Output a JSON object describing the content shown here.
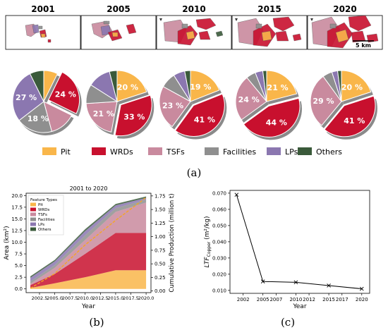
{
  "colors": {
    "pit": "#f9b64a",
    "wrds": "#c8102e",
    "tsfs": "#c98a9e",
    "facilities": "#8f8f8f",
    "lps": "#8b77b0",
    "others": "#3a5a3a",
    "line_orange": "#f5a623",
    "map_bg": "#ffffff"
  },
  "panel_a": {
    "label": "(a)",
    "years": [
      "2001",
      "2005",
      "2010",
      "2015",
      "2020"
    ],
    "scale_label": "5 km",
    "legend": [
      {
        "key": "pit",
        "label": "Pit"
      },
      {
        "key": "wrds",
        "label": "WRDs"
      },
      {
        "key": "tsfs",
        "label": "TSFs"
      },
      {
        "key": "facilities",
        "label": "Facilities"
      },
      {
        "key": "lps",
        "label": "LPs"
      },
      {
        "key": "others",
        "label": "Others"
      }
    ]
  },
  "panel_b": {
    "label": "(b)"
  },
  "panel_c": {
    "label": "(c)"
  },
  "chart_data": [
    {
      "type": "pie",
      "title": "2001",
      "categories": [
        "Pit",
        "WRDs",
        "TSFs",
        "Facilities",
        "LPs",
        "Others"
      ],
      "values": [
        7,
        24,
        13,
        18,
        27,
        7
      ],
      "value_labels": [
        "",
        "24 %",
        "",
        "18 %",
        "27 %",
        ""
      ]
    },
    {
      "type": "pie",
      "title": "2005",
      "categories": [
        "Pit",
        "WRDs",
        "TSFs",
        "Facilities",
        "LPs",
        "Others"
      ],
      "values": [
        20,
        33,
        21,
        10,
        12,
        4
      ],
      "value_labels": [
        "20 %",
        "33 %",
        "21 %",
        "",
        "",
        ""
      ]
    },
    {
      "type": "pie",
      "title": "2010",
      "categories": [
        "Pit",
        "WRDs",
        "TSFs",
        "Facilities",
        "LPs",
        "Others"
      ],
      "values": [
        19,
        41,
        23,
        8,
        6,
        3
      ],
      "value_labels": [
        "19 %",
        "41 %",
        "23 %",
        "",
        "",
        ""
      ]
    },
    {
      "type": "pie",
      "title": "2015",
      "categories": [
        "Pit",
        "WRDs",
        "TSFs",
        "Facilities",
        "LPs",
        "Others"
      ],
      "values": [
        21,
        44,
        24,
        5,
        4,
        2
      ],
      "value_labels": [
        "21 %",
        "44 %",
        "24 %",
        "",
        "",
        ""
      ]
    },
    {
      "type": "pie",
      "title": "2020",
      "categories": [
        "Pit",
        "WRDs",
        "TSFs",
        "Facilities",
        "LPs",
        "Others"
      ],
      "values": [
        20,
        41,
        29,
        5,
        3,
        2
      ],
      "value_labels": [
        "20 %",
        "41 %",
        "29 %",
        "",
        "",
        ""
      ]
    },
    {
      "type": "area",
      "title": "2001 to 2020",
      "xlabel": "Year",
      "ylabel": "Area (km²)",
      "y2label": "Cumulative Production (million t)",
      "legend_title": "Feature Types",
      "x": [
        2001,
        2005,
        2010,
        2015,
        2020
      ],
      "xticks": [
        2002.5,
        2005.0,
        2007.5,
        2010.0,
        2012.5,
        2015.0,
        2017.5,
        2020.0
      ],
      "xtick_labels": [
        "2002.5",
        "2005.0",
        "2007.5",
        "2010.0",
        "2012.5",
        "2015.0",
        "2017.5",
        "2020.0"
      ],
      "yticks": [
        "0.0",
        "2.5",
        "5.0",
        "7.5",
        "10.0",
        "12.5",
        "15.0",
        "17.5",
        "20.0"
      ],
      "y2ticks": [
        "0.00",
        "0.25",
        "0.50",
        "0.75",
        "1.00",
        "1.25",
        "1.50",
        "1.75"
      ],
      "ylim": [
        -0.8,
        20.5
      ],
      "y2lim": [
        -0.03,
        1.8
      ],
      "series": [
        {
          "key": "pit",
          "name": "Pit",
          "values": [
            0.2,
            1.2,
            2.5,
            4.0,
            4.0
          ]
        },
        {
          "key": "wrds",
          "name": "WRDs",
          "values": [
            0.6,
            2.0,
            5.0,
            8.0,
            8.0
          ]
        },
        {
          "key": "tsfs",
          "name": "TSFs",
          "values": [
            0.3,
            1.3,
            3.0,
            4.5,
            6.5
          ]
        },
        {
          "key": "facilities",
          "name": "Facilities",
          "values": [
            0.5,
            0.6,
            1.0,
            0.8,
            0.6
          ]
        },
        {
          "key": "lps",
          "name": "LPs",
          "values": [
            0.8,
            0.8,
            0.9,
            0.6,
            0.4
          ]
        },
        {
          "key": "others",
          "name": "Others",
          "values": [
            0.3,
            0.3,
            0.4,
            0.3,
            0.3
          ]
        }
      ],
      "production": {
        "x": [
          2001,
          2005,
          2010,
          2015,
          2020
        ],
        "values": [
          0.05,
          0.32,
          0.85,
          1.3,
          1.72
        ]
      }
    },
    {
      "type": "line",
      "xlabel": "Year",
      "ylabel": "LTF Copper (m²/kg)",
      "ylabel_main": "LTF",
      "ylabel_sub": "Copper",
      "ylabel_unit": " (m²/kg)",
      "x": [
        2001,
        2005,
        2010,
        2015,
        2020
      ],
      "values": [
        0.069,
        0.0155,
        0.015,
        0.013,
        0.011
      ],
      "xticks": [
        2002,
        2005,
        2007,
        2010,
        2012,
        2015,
        2017,
        2020
      ],
      "xtick_labels": [
        "2002",
        "2005",
        "2007",
        "2010",
        "2012",
        "2015",
        "2017",
        "2020"
      ],
      "yticks": [
        0.01,
        0.02,
        0.03,
        0.04,
        0.05,
        0.06,
        0.07
      ],
      "ytick_labels": [
        "0.010",
        "0.020",
        "0.030",
        "0.040",
        "0.050",
        "0.060",
        "0.070"
      ],
      "xlim": [
        2000.0,
        2021.2
      ],
      "ylim": [
        0.0082,
        0.0717
      ]
    }
  ]
}
